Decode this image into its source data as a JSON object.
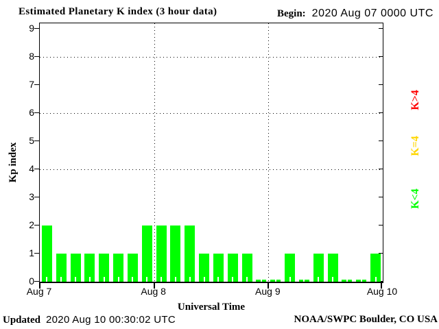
{
  "header": {
    "title": "Estimated Planetary K index (3 hour data)",
    "begin_label": "Begin:",
    "begin_value": "2020 Aug 07 0000 UTC"
  },
  "chart_data": {
    "type": "bar",
    "title": "Estimated Planetary K index (3 hour data)",
    "xlabel": "Universal Time",
    "ylabel": "Kp index",
    "ylim": [
      0,
      9.2
    ],
    "yticks": [
      0,
      1,
      2,
      3,
      4,
      5,
      6,
      7,
      8,
      9
    ],
    "grid_y": [
      4,
      6,
      8
    ],
    "grid": "dotted-horizontal-at-storm-levels",
    "legend_position": "right-outside",
    "interval_hours": 3,
    "x_day_labels": [
      "Aug 7",
      "Aug 8",
      "Aug 9",
      "Aug 10"
    ],
    "days": [
      {
        "date": "Aug 7",
        "values": [
          2,
          1,
          1,
          1,
          1,
          1,
          1,
          2
        ]
      },
      {
        "date": "Aug 8",
        "values": [
          2,
          2,
          2,
          1,
          1,
          1,
          1,
          0
        ]
      },
      {
        "date": "Aug 9",
        "values": [
          0,
          1,
          0,
          1,
          1,
          0,
          0,
          1
        ]
      }
    ],
    "colors": {
      "low": "#00ff00",
      "mid": "#ffd700",
      "high": "#ff0000"
    },
    "legend": [
      {
        "label": "K>4",
        "color": "#ff0000"
      },
      {
        "label": "K=4",
        "color": "#ffd700"
      },
      {
        "label": "K<4",
        "color": "#00ff00"
      }
    ]
  },
  "footer": {
    "updated_label": "Updated",
    "updated_value": "2020 Aug 10 00:30:02 UTC",
    "credit": "NOAA/SWPC Boulder, CO USA"
  }
}
